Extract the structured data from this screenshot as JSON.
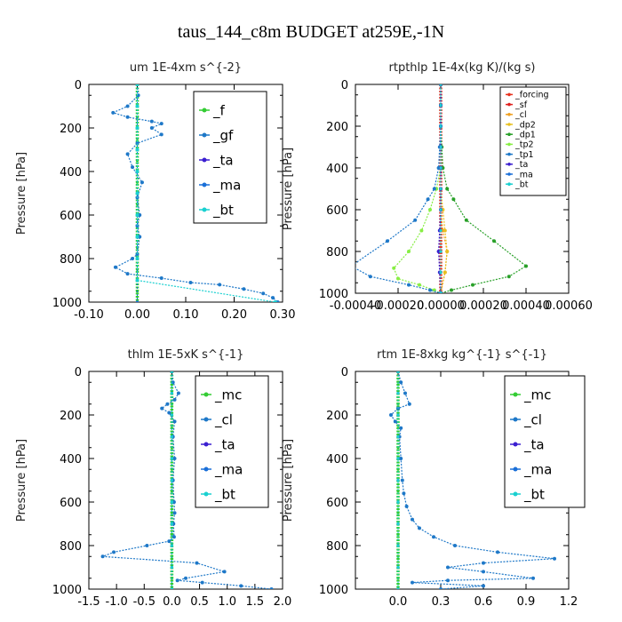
{
  "suptitle": "taus_144_c8m  BUDGET at259E,-1N",
  "colors": {
    "f": "#33cc33",
    "gf": "#1e78c8",
    "ta": "#3b1fd0",
    "ma": "#1a6fd8",
    "bt": "#1ad0d0",
    "mc": "#33cc33",
    "cl": "#1e78c8",
    "forcing": "#e8321e",
    "sf": "#e0201e",
    "cl_small": "#f0a020",
    "dp2": "#e8c020",
    "dp1": "#28a028",
    "tp2": "#88ee44",
    "tp1": "#1e78c8"
  },
  "chart_data": [
    {
      "type": "line",
      "title": "um   1E-4xm s^{-2}",
      "ylabel": "Pressure [hPa]",
      "xlim": [
        -0.1,
        0.3
      ],
      "ylim": [
        1000,
        0
      ],
      "xticks": [
        "-0.10",
        "0.00",
        "0.10",
        "0.20",
        "0.30"
      ],
      "yticks": [
        "0",
        "200",
        "400",
        "600",
        "800",
        "1000"
      ],
      "legend": "top-right",
      "series": [
        {
          "name": "_f",
          "color_key": "f",
          "x": [
            0,
            0,
            0,
            0,
            0,
            0,
            0,
            0,
            0,
            0,
            0,
            0,
            0,
            0,
            0,
            0,
            0,
            0,
            0,
            0,
            0
          ],
          "y": [
            0,
            50,
            100,
            150,
            200,
            250,
            300,
            350,
            400,
            450,
            500,
            550,
            600,
            650,
            700,
            750,
            800,
            850,
            900,
            950,
            1000
          ]
        },
        {
          "name": "_gf",
          "color_key": "gf",
          "x": [
            0,
            0.002,
            -0.02,
            -0.05,
            -0.02,
            0.03,
            0.05,
            0.03,
            0.05,
            0.0,
            -0.02,
            -0.01,
            0.01,
            0.0,
            0.005,
            0.0,
            0.005,
            0.0,
            -0.01,
            -0.045,
            -0.02,
            0.05,
            0.11,
            0.17,
            0.22,
            0.26,
            0.28,
            0.29
          ],
          "y": [
            0,
            50,
            100,
            130,
            150,
            170,
            180,
            200,
            230,
            270,
            320,
            380,
            450,
            520,
            600,
            650,
            700,
            780,
            800,
            840,
            870,
            890,
            910,
            920,
            940,
            960,
            980,
            1000
          ]
        },
        {
          "name": "_ta",
          "color_key": "ta",
          "x": [
            0,
            0,
            0,
            0,
            0,
            0,
            0,
            0,
            0,
            0,
            0
          ],
          "y": [
            0,
            100,
            200,
            300,
            400,
            500,
            600,
            700,
            800,
            900,
            1000
          ]
        },
        {
          "name": "_ma",
          "color_key": "ma",
          "x": [
            0,
            0,
            0,
            0,
            0,
            0,
            0,
            0,
            0,
            0,
            0
          ],
          "y": [
            0,
            100,
            200,
            300,
            400,
            500,
            600,
            700,
            800,
            900,
            1000
          ]
        },
        {
          "name": "_bt",
          "color_key": "bt",
          "x": [
            0,
            0,
            0,
            0,
            0,
            0,
            0,
            0,
            0,
            0,
            0.285
          ],
          "y": [
            0,
            100,
            200,
            300,
            400,
            500,
            600,
            700,
            800,
            900,
            1000
          ]
        }
      ]
    },
    {
      "type": "line",
      "title": "rtpthlp   1E-4x(kg K)/(kg s)",
      "ylabel": "Pressure [hPa]",
      "xlim": [
        -0.0004,
        0.0006
      ],
      "ylim": [
        1000,
        0
      ],
      "xticks": [
        "-0.00040",
        "-0.00020",
        "0.00000",
        "0.00020",
        "0.00040",
        "0.00060"
      ],
      "yticks": [
        "0",
        "200",
        "400",
        "600",
        "800",
        "1000"
      ],
      "legend": "top-right",
      "series": [
        {
          "name": "_forcing",
          "color_key": "forcing",
          "x": [
            0,
            0,
            0,
            0,
            0,
            0,
            0,
            0,
            0,
            0,
            0
          ],
          "y": [
            0,
            100,
            200,
            300,
            400,
            500,
            600,
            700,
            800,
            900,
            1000
          ]
        },
        {
          "name": "_sf",
          "color_key": "sf",
          "x": [
            0,
            0,
            0,
            0,
            0,
            0,
            0,
            0,
            0,
            0,
            0
          ],
          "y": [
            0,
            100,
            200,
            300,
            400,
            500,
            600,
            700,
            800,
            900,
            1000
          ]
        },
        {
          "name": "_cl",
          "color_key": "cl_small",
          "x": [
            0,
            0,
            0,
            0,
            0,
            0,
            0,
            1e-05,
            3e-05,
            2e-05,
            0
          ],
          "y": [
            0,
            100,
            200,
            300,
            400,
            500,
            600,
            700,
            800,
            900,
            1000
          ]
        },
        {
          "name": "_dp2",
          "color_key": "dp2",
          "x": [
            0,
            0,
            0,
            0,
            0,
            0,
            1e-05,
            2e-05,
            3e-05,
            2e-05,
            0
          ],
          "y": [
            0,
            100,
            200,
            300,
            400,
            500,
            600,
            700,
            800,
            900,
            1000
          ]
        },
        {
          "name": "_dp1",
          "color_key": "dp1",
          "x": [
            0,
            0,
            0,
            5e-06,
            1e-05,
            3e-05,
            6e-05,
            0.00012,
            0.00025,
            0.0004,
            0.00032,
            0.00015,
            5e-05,
            0
          ],
          "y": [
            0,
            100,
            200,
            300,
            400,
            500,
            550,
            650,
            750,
            870,
            920,
            960,
            985,
            1000
          ]
        },
        {
          "name": "_tp2",
          "color_key": "tp2",
          "x": [
            0,
            0,
            0,
            0,
            0,
            -2e-05,
            -5e-05,
            -9e-05,
            -0.00015,
            -0.00022,
            -0.0002,
            -0.0001,
            -3e-05,
            0
          ],
          "y": [
            0,
            100,
            200,
            300,
            400,
            500,
            600,
            700,
            800,
            880,
            930,
            960,
            985,
            1000
          ]
        },
        {
          "name": "_tp1",
          "color_key": "tp1",
          "x": [
            0,
            0,
            0,
            -5e-06,
            -1e-05,
            -3e-05,
            -6e-05,
            -0.00012,
            -0.00025,
            -0.00042,
            -0.00033,
            -0.00015,
            -5e-05,
            0
          ],
          "y": [
            0,
            100,
            200,
            300,
            400,
            500,
            550,
            650,
            750,
            870,
            920,
            960,
            985,
            1000
          ]
        },
        {
          "name": "_ta",
          "color_key": "ta",
          "x": [
            0,
            0,
            0,
            0,
            0,
            0,
            0,
            -5e-06,
            -1e-05,
            -5e-06,
            0
          ],
          "y": [
            0,
            100,
            200,
            300,
            400,
            500,
            600,
            700,
            800,
            900,
            1000
          ]
        },
        {
          "name": "_ma",
          "color_key": "ma",
          "x": [
            0,
            0,
            0,
            0,
            0,
            0,
            0,
            0,
            0,
            0,
            0
          ],
          "y": [
            0,
            100,
            200,
            300,
            400,
            500,
            600,
            700,
            800,
            900,
            1000
          ]
        },
        {
          "name": "_bt",
          "color_key": "bt",
          "x": [
            0,
            0,
            0,
            0,
            0,
            0,
            0,
            0,
            0,
            0,
            0
          ],
          "y": [
            0,
            100,
            200,
            300,
            400,
            500,
            600,
            700,
            800,
            900,
            1000
          ]
        }
      ]
    },
    {
      "type": "line",
      "title": "thlm   1E-5xK s^{-1}",
      "ylabel": "Pressure [hPa]",
      "xlim": [
        -1.5,
        2.0
      ],
      "ylim": [
        1000,
        0
      ],
      "xticks": [
        "-1.5",
        "-1.0",
        "-0.5",
        "0.0",
        "0.5",
        "1.0",
        "1.5",
        "2.0"
      ],
      "yticks": [
        "0",
        "200",
        "400",
        "600",
        "800",
        "1000"
      ],
      "legend": "top-right",
      "series": [
        {
          "name": "_mc",
          "color_key": "mc",
          "x": [
            0,
            0,
            0,
            0,
            0,
            0,
            0,
            0,
            0,
            0,
            0,
            0,
            0,
            0,
            0,
            0,
            0,
            0,
            0,
            0,
            0
          ],
          "y": [
            0,
            50,
            100,
            150,
            200,
            250,
            300,
            350,
            400,
            450,
            500,
            550,
            600,
            650,
            700,
            750,
            800,
            850,
            900,
            950,
            1000
          ]
        },
        {
          "name": "_cl",
          "color_key": "cl",
          "x": [
            0,
            0.02,
            0.12,
            0.05,
            -0.08,
            -0.18,
            -0.05,
            0.05,
            0.02,
            0.05,
            0.02,
            0.04,
            0.05,
            0.03,
            0.04,
            -0.05,
            -0.45,
            -1.05,
            -1.25,
            0.45,
            0.95,
            0.25,
            0.1,
            0.55,
            1.25,
            1.8
          ],
          "y": [
            0,
            50,
            100,
            130,
            150,
            170,
            190,
            230,
            300,
            400,
            500,
            600,
            650,
            700,
            760,
            780,
            800,
            830,
            850,
            880,
            920,
            950,
            960,
            970,
            985,
            1000
          ]
        },
        {
          "name": "_ta",
          "color_key": "ta",
          "x": [
            0,
            0,
            0,
            0,
            0,
            0,
            0,
            0,
            0,
            0,
            0
          ],
          "y": [
            0,
            100,
            200,
            300,
            400,
            500,
            600,
            700,
            800,
            900,
            1000
          ]
        },
        {
          "name": "_ma",
          "color_key": "ma",
          "x": [
            0,
            0,
            0,
            0,
            0,
            0,
            0,
            0,
            0,
            0,
            0
          ],
          "y": [
            0,
            100,
            200,
            300,
            400,
            500,
            600,
            700,
            800,
            900,
            1000
          ]
        },
        {
          "name": "_bt",
          "color_key": "bt",
          "x": [
            0,
            0,
            0,
            0,
            0,
            0,
            0,
            0,
            0,
            0,
            0
          ],
          "y": [
            0,
            100,
            200,
            300,
            400,
            500,
            600,
            700,
            800,
            900,
            1000
          ]
        }
      ]
    },
    {
      "type": "line",
      "title": "rtm   1E-8xkg kg^{-1} s^{-1}",
      "ylabel": "Pressure [hPa]",
      "xlim": [
        -0.3,
        1.2
      ],
      "ylim": [
        1000,
        0
      ],
      "xticks": [
        "0.0",
        "0.3",
        "0.6",
        "0.9",
        "1.2"
      ],
      "xtick_values": [
        0.0,
        0.3,
        0.6,
        0.9,
        1.2
      ],
      "yticks": [
        "0",
        "200",
        "400",
        "600",
        "800",
        "1000"
      ],
      "legend": "top-right",
      "series": [
        {
          "name": "_mc",
          "color_key": "mc",
          "x": [
            0,
            0,
            0,
            0,
            0,
            0,
            0,
            0,
            0,
            0,
            0,
            0,
            0,
            0,
            0,
            0,
            0,
            0,
            0,
            0,
            0
          ],
          "y": [
            0,
            50,
            100,
            150,
            200,
            250,
            300,
            350,
            400,
            450,
            500,
            550,
            600,
            650,
            700,
            750,
            800,
            850,
            900,
            950,
            1000
          ]
        },
        {
          "name": "_cl",
          "color_key": "cl",
          "x": [
            0,
            0.02,
            0.05,
            0.08,
            0.0,
            -0.05,
            -0.02,
            0.02,
            0.01,
            0.02,
            0.03,
            0.04,
            0.06,
            0.1,
            0.15,
            0.25,
            0.4,
            0.7,
            1.1,
            0.6,
            0.35,
            0.6,
            0.95,
            0.35,
            0.1,
            0.6,
            0.3
          ],
          "y": [
            0,
            50,
            100,
            150,
            170,
            200,
            230,
            260,
            300,
            400,
            500,
            560,
            620,
            680,
            720,
            760,
            800,
            830,
            860,
            880,
            900,
            920,
            950,
            960,
            970,
            985,
            1000
          ]
        },
        {
          "name": "_ta",
          "color_key": "ta",
          "x": [
            0,
            0,
            0,
            0,
            0,
            0,
            0,
            0,
            0,
            0,
            0
          ],
          "y": [
            0,
            100,
            200,
            300,
            400,
            500,
            600,
            700,
            800,
            900,
            1000
          ]
        },
        {
          "name": "_ma",
          "color_key": "ma",
          "x": [
            0,
            0,
            0,
            0,
            0,
            0,
            0,
            0,
            0,
            0,
            0
          ],
          "y": [
            0,
            100,
            200,
            300,
            400,
            500,
            600,
            700,
            800,
            900,
            1000
          ]
        },
        {
          "name": "_bt",
          "color_key": "bt",
          "x": [
            0,
            0,
            0,
            0,
            0,
            0,
            0,
            0,
            0,
            0,
            0
          ],
          "y": [
            0,
            100,
            200,
            300,
            400,
            500,
            600,
            700,
            800,
            900,
            1000
          ]
        }
      ]
    }
  ]
}
